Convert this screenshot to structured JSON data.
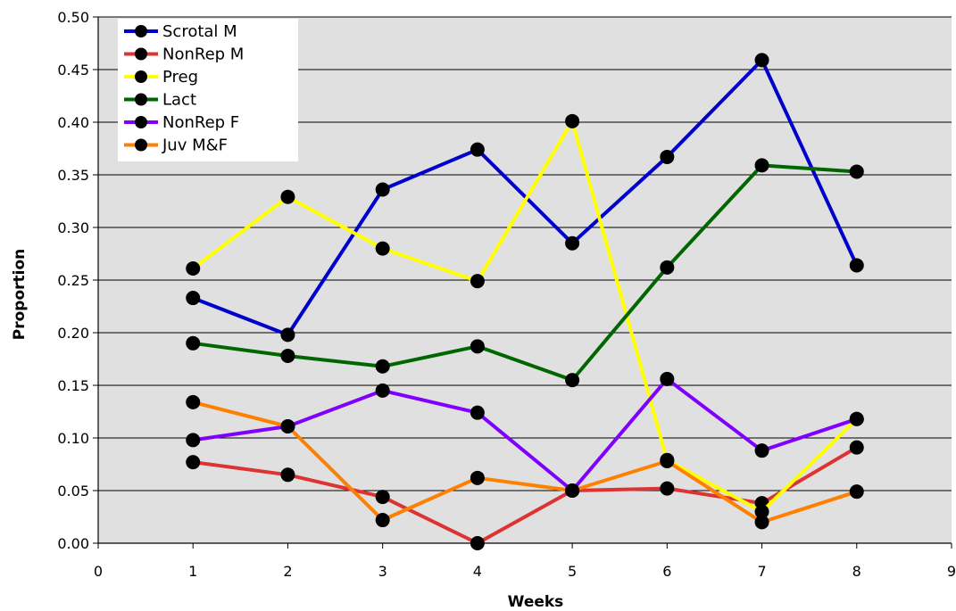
{
  "chart_data": {
    "type": "line",
    "xlabel": "Weeks",
    "ylabel": "Proportion",
    "xlim": [
      0,
      9
    ],
    "ylim": [
      0,
      0.5
    ],
    "x_ticks": [
      "0",
      "1",
      "2",
      "3",
      "4",
      "5",
      "6",
      "7",
      "8",
      "9"
    ],
    "y_ticks": [
      "0.00",
      "0.05",
      "0.10",
      "0.15",
      "0.20",
      "0.25",
      "0.30",
      "0.35",
      "0.40",
      "0.45",
      "0.50"
    ],
    "grid": "horizontal",
    "legend": "top-left",
    "plot_background": "#e0e0e0",
    "marker_color": "#000000",
    "x": [
      1,
      2,
      3,
      4,
      5,
      6,
      7,
      8
    ],
    "series": [
      {
        "name": "Scrotal M",
        "color": "#0000cc",
        "values": [
          0.233,
          0.198,
          0.336,
          0.374,
          0.285,
          0.367,
          0.459,
          0.264
        ]
      },
      {
        "name": "NonRep M",
        "color": "#dd3333",
        "values": [
          0.077,
          0.065,
          0.044,
          0.0,
          0.05,
          0.052,
          0.038,
          0.091
        ]
      },
      {
        "name": "Preg",
        "color": "#ffff00",
        "values": [
          0.261,
          0.329,
          0.28,
          0.249,
          0.401,
          0.079,
          0.03,
          0.118
        ]
      },
      {
        "name": "Lact",
        "color": "#006600",
        "values": [
          0.19,
          0.178,
          0.168,
          0.187,
          0.155,
          0.262,
          0.359,
          0.353
        ]
      },
      {
        "name": "NonRep F",
        "color": "#7f00ff",
        "values": [
          0.098,
          0.111,
          0.145,
          0.124,
          0.05,
          0.156,
          0.088,
          0.118
        ]
      },
      {
        "name": "Juv M&F",
        "color": "#ff7f00",
        "values": [
          0.134,
          0.111,
          0.022,
          0.062,
          0.05,
          0.078,
          0.02,
          0.049
        ]
      }
    ]
  }
}
